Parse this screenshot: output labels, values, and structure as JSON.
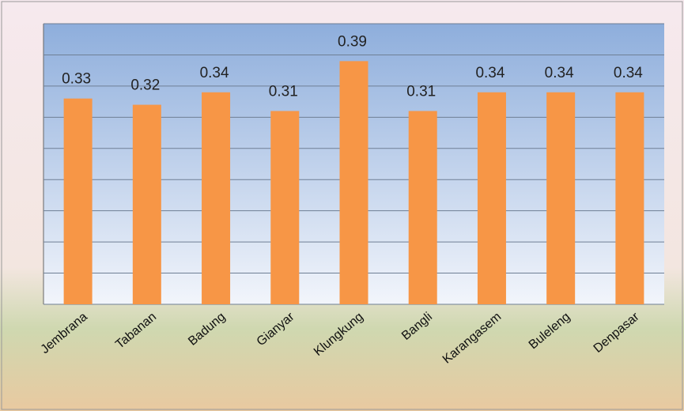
{
  "chart_data": {
    "type": "bar",
    "categories": [
      "Jembrana",
      "Tabanan",
      "Badung",
      "Gianyar",
      "Klungkung",
      "Bangli",
      "Karangasem",
      "Buleleng",
      "Denpasar"
    ],
    "values": [
      0.33,
      0.32,
      0.34,
      0.31,
      0.39,
      0.31,
      0.34,
      0.34,
      0.34
    ],
    "color": "#f79646",
    "ylim": [
      0,
      0.45
    ],
    "yticks": [
      0,
      0.05,
      0.1,
      0.15,
      0.2,
      0.25,
      0.3,
      0.35,
      0.4,
      0.45
    ],
    "grid": true
  }
}
